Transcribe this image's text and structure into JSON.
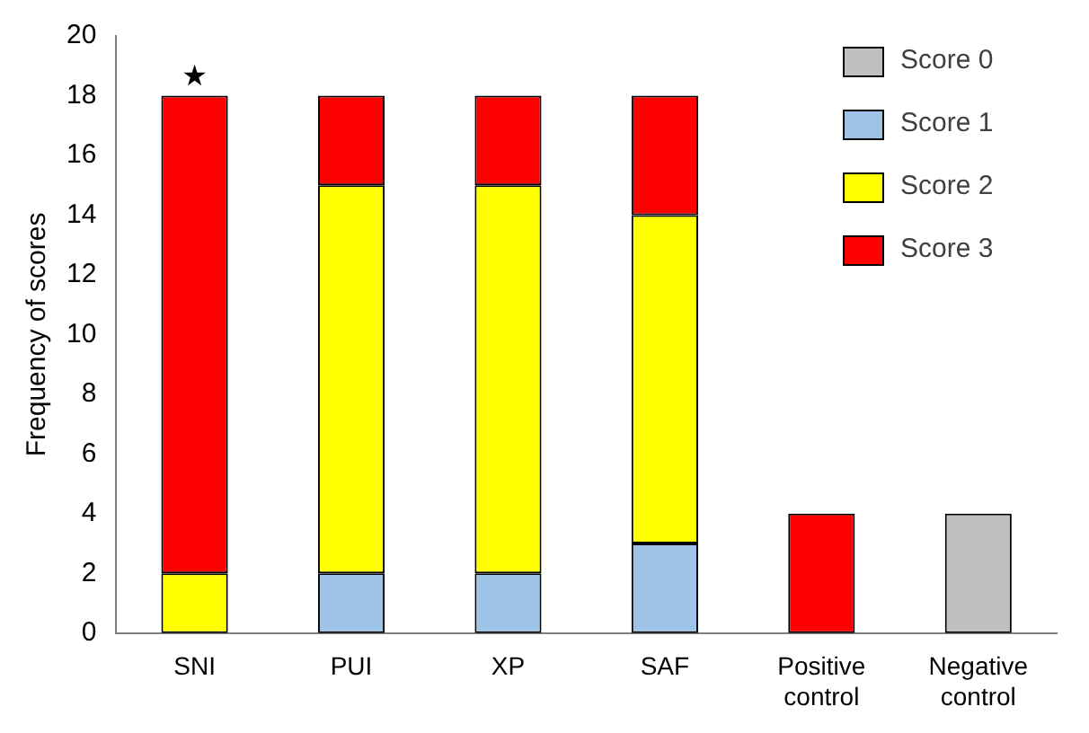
{
  "chart_data": {
    "type": "bar",
    "stacked": true,
    "ylabel": "Frequency of scores",
    "categories": [
      "SNI",
      "PUI",
      "XP",
      "SAF",
      "Positive control",
      "Negative control"
    ],
    "series": [
      {
        "name": "Score 0",
        "color": "#bfbfbf",
        "values": [
          0,
          0,
          0,
          0,
          0,
          4
        ]
      },
      {
        "name": "Score 1",
        "color": "#9dc3e6",
        "values": [
          0,
          2,
          2,
          3,
          0,
          0
        ]
      },
      {
        "name": "Score 2",
        "color": "#ffff00",
        "values": [
          2,
          13,
          13,
          11,
          0,
          0
        ]
      },
      {
        "name": "Score 3",
        "color": "#ff0000",
        "values": [
          16,
          3,
          3,
          4,
          4,
          0
        ]
      }
    ],
    "ylim": [
      0,
      20
    ],
    "yticks": [
      0,
      2,
      4,
      6,
      8,
      10,
      12,
      14,
      16,
      18,
      20
    ],
    "grid": false,
    "legend": "top right",
    "annotations": [
      {
        "text": "★",
        "x": "SNI",
        "y": 18
      }
    ]
  }
}
